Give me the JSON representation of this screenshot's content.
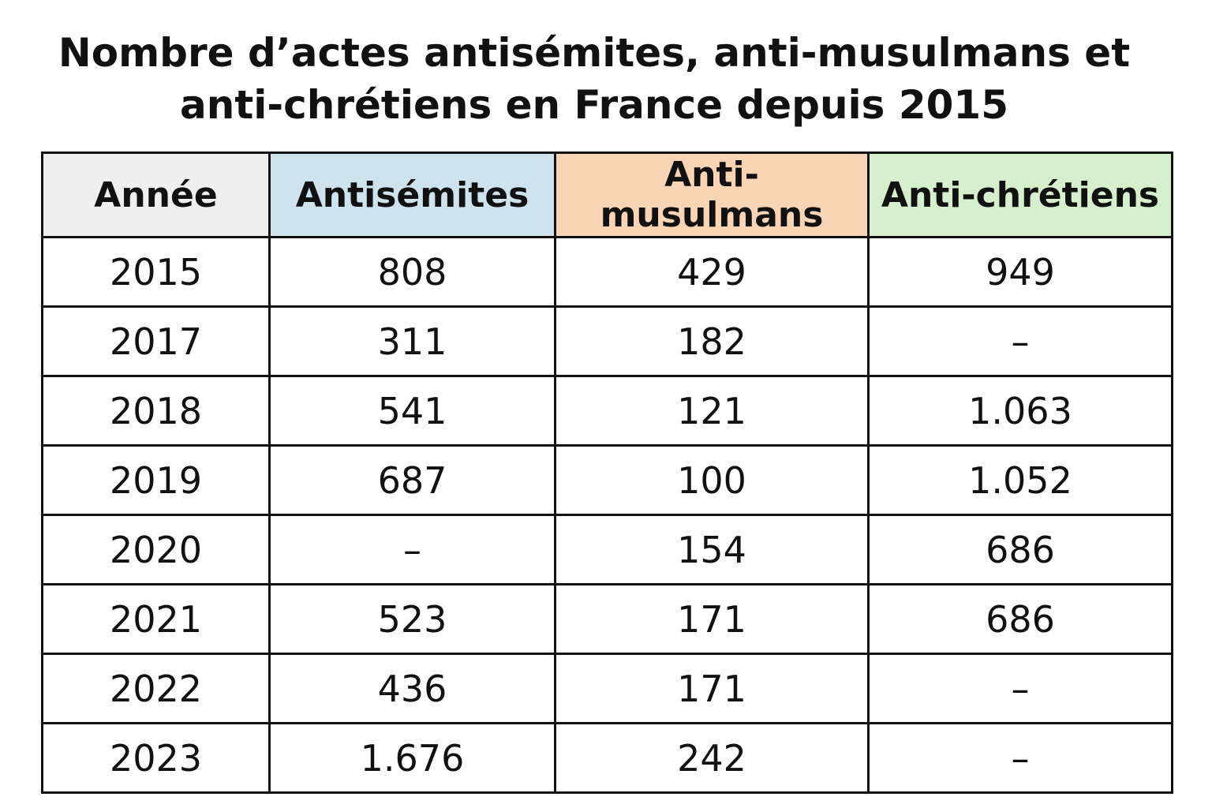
{
  "title_line1": "Nombre d’actes antisémites, anti-musulmans et",
  "title_line2": "anti-chrétiens en France depuis 2015",
  "colors": {
    "year_header": "#efefef",
    "antisemites_header": "#cfe3ef",
    "antimusulmans_header": "#f9d5b6",
    "antichretiens_header": "#d6efcc"
  },
  "chart_data": {
    "type": "table",
    "title": "Nombre d’actes antisémites, anti-musulmans et anti-chrétiens en France depuis 2015",
    "headers": [
      "Année",
      "Antisémites",
      "Anti-musulmans",
      "Anti-chrétiens"
    ],
    "rows": [
      [
        "2015",
        "808",
        "429",
        "949"
      ],
      [
        "2017",
        "311",
        "182",
        "–"
      ],
      [
        "2018",
        "541",
        "121",
        "1.063"
      ],
      [
        "2019",
        "687",
        "100",
        "1.052"
      ],
      [
        "2020",
        "–",
        "154",
        "686"
      ],
      [
        "2021",
        "523",
        "171",
        "686"
      ],
      [
        "2022",
        "436",
        "171",
        "–"
      ],
      [
        "2023",
        "1.676",
        "242",
        "–"
      ]
    ]
  }
}
